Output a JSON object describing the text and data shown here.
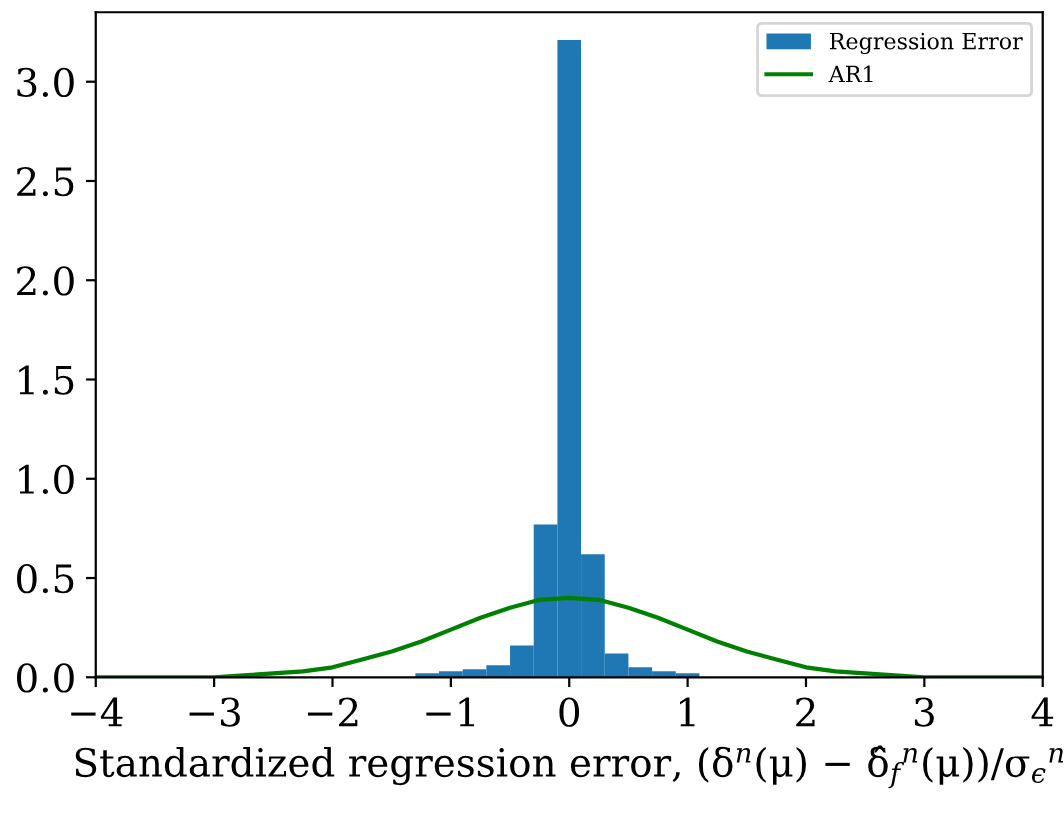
{
  "chart_data": {
    "type": "histogram",
    "xlabel": "Standardized regression error, (δ$^{n}$(μ) − δ̂$_{f}$$^{n}$(μ))/σ$_{ϵ}$$^{n}$",
    "series": [
      {
        "name": "Regression Error",
        "color": "#1f77b4",
        "bins": [
          -1.3,
          -1.1,
          -0.9,
          -0.7,
          -0.5,
          -0.3,
          -0.1,
          0.1,
          0.3,
          0.5,
          0.7,
          0.9,
          1.1
        ],
        "values": [
          0.02,
          0.03,
          0.04,
          0.06,
          0.16,
          0.77,
          3.21,
          0.62,
          0.12,
          0.05,
          0.03,
          0.02
        ]
      },
      {
        "name": "AR1",
        "type": "line",
        "color": "#008000",
        "x": [
          -4,
          -3.5,
          -3.25,
          -3,
          -2.75,
          -2.5,
          -2.25,
          -2,
          -1.75,
          -1.5,
          -1.25,
          -1,
          -0.75,
          -0.5,
          -0.25,
          0,
          0.25,
          0.5,
          0.75,
          1,
          1.25,
          1.5,
          1.75,
          2,
          2.25,
          2.5,
          2.75,
          3,
          3.25,
          3.5,
          4
        ],
        "values": [
          0,
          0,
          0,
          0,
          0.01,
          0.02,
          0.03,
          0.05,
          0.09,
          0.13,
          0.18,
          0.24,
          0.3,
          0.35,
          0.39,
          0.4,
          0.39,
          0.35,
          0.3,
          0.24,
          0.18,
          0.13,
          0.09,
          0.05,
          0.03,
          0.02,
          0.01,
          0,
          0,
          0,
          0
        ]
      }
    ],
    "xlim": [
      -4,
      4
    ],
    "ylim": [
      0,
      3.35
    ],
    "xticks": [
      -4,
      -3,
      -2,
      -1,
      0,
      1,
      2,
      3,
      4
    ],
    "yticks": [
      {
        "value": 0,
        "label": "0.0"
      },
      {
        "value": 0.5,
        "label": "0.5"
      },
      {
        "value": 1,
        "label": "1.0"
      },
      {
        "value": 1.5,
        "label": "1.5"
      },
      {
        "value": 2,
        "label": "2.0"
      },
      {
        "value": 2.5,
        "label": "2.5"
      },
      {
        "value": 3,
        "label": "3.0"
      }
    ],
    "grid": false,
    "legend": "top right"
  }
}
